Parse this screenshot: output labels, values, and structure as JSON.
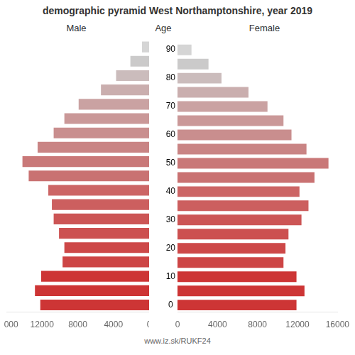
{
  "chart_data": {
    "type": "bar",
    "orientation": "horizontal",
    "title": "demographic pyramid West Northamptonshire, year 2019",
    "ylabel": "Age",
    "annotations": [
      "www.iz.sk/RUKF24"
    ],
    "categories": [
      "0",
      null,
      "10",
      null,
      "20",
      null,
      "30",
      null,
      "40",
      null,
      "50",
      null,
      "60",
      null,
      "70",
      null,
      "80",
      null,
      "90"
    ],
    "series": [
      {
        "name": "Male",
        "values": [
          12200,
          12800,
          12100,
          9700,
          9500,
          10100,
          10700,
          10900,
          11300,
          13500,
          14200,
          12500,
          10700,
          9500,
          7900,
          5400,
          3700,
          2100,
          800
        ]
      },
      {
        "name": "Female",
        "values": [
          11900,
          12700,
          11900,
          10600,
          10800,
          11100,
          12400,
          13100,
          12200,
          13700,
          15100,
          12900,
          11400,
          10600,
          9000,
          7100,
          4400,
          3100,
          1400
        ]
      }
    ],
    "colors": [
      "#cd3535",
      "#cd3535",
      "#cd3535",
      "#cd4545",
      "#cd4848",
      "#cc5050",
      "#cc5555",
      "#cc5f5f",
      "#cc6565",
      "#c97272",
      "#c97878",
      "#c98484",
      "#c98e8e",
      "#ca9898",
      "#caa2a2",
      "#caaeae",
      "#cbbcbc",
      "#cbcaca",
      "#d5d5d5"
    ],
    "xlim": [
      0,
      16000
    ],
    "xticks": [
      0,
      4000,
      8000,
      12000,
      16000
    ],
    "grid": false
  }
}
